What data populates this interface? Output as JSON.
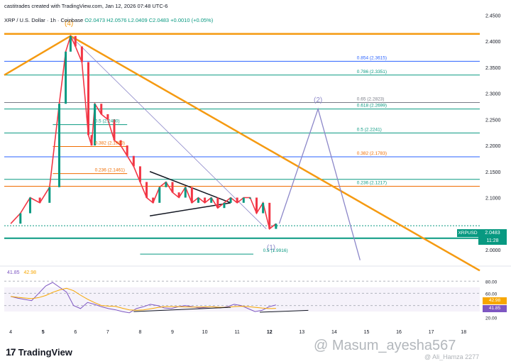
{
  "header": {
    "created": "castitrades created with TradingView.com, Jan 12, 2026 07:48 UTC-6",
    "symbol": "XRP / U.S. Dollar · 1h · Coinbase",
    "ohlc": "O2.0473 H2.0576 L2.0409 C2.0483 +0.0010 (+0.05%)"
  },
  "price_axis": {
    "ticks": [
      "2.4500",
      "2.4000",
      "2.3500",
      "2.3000",
      "2.2500",
      "2.2000",
      "2.1500",
      "2.1000",
      "2.0000"
    ]
  },
  "time_axis": {
    "ticks": [
      "4",
      "5",
      "6",
      "7",
      "8",
      "9",
      "10",
      "11",
      "12",
      "13",
      "14",
      "15",
      "16",
      "17",
      "18"
    ]
  },
  "current_price": {
    "symbol": "XRPUSD",
    "price": "2.0483",
    "countdown": "11:28"
  },
  "wave_labels": [
    "(4)",
    "(2)",
    "(1)"
  ],
  "fib_left": [
    "0.5 (2.2400)",
    "0.382 (2.1980)",
    "0.236 (2.1461)"
  ],
  "fib_right": [
    "0.854 (2.3615)",
    "0.786 (2.3351)",
    "0.65 (2.2823)",
    "0.618 (2.2699)",
    "0.5 (2.2241)",
    "0.382 (2.1783)",
    "0.236 (2.1217)",
    "0.5 (1.9916)"
  ],
  "rsi": {
    "value": "41.85",
    "ma": "42.98",
    "ticks": [
      "80.00",
      "60.00",
      "20.00"
    ]
  },
  "branding": {
    "logo": "TradingView",
    "watermark": "@ Masum_ayesha567",
    "watermark2": "@ Ali_Hamza 2277"
  },
  "colors": {
    "up": "#089981",
    "down": "#f23645",
    "trend": "#f59a11",
    "projection": "#8c87c9",
    "rsi": "#7e57c2"
  },
  "chart_data": {
    "type": "line",
    "xlabel": "",
    "ylabel": "",
    "x_days": [
      4,
      4.3,
      4.6,
      4.9,
      5.2,
      5.5,
      5.7,
      5.85,
      6.0,
      6.2,
      6.4,
      6.5,
      6.6,
      6.8,
      7.0,
      7.2,
      7.4,
      7.6,
      7.8,
      8.0,
      8.2,
      8.4,
      8.6,
      8.8,
      9.0,
      9.2,
      9.4,
      9.6,
      9.8,
      10.0,
      10.2,
      10.4,
      10.6,
      10.8,
      11.0,
      11.2,
      11.4,
      11.6,
      11.8,
      12.0,
      12.2
    ],
    "price": [
      2.05,
      2.07,
      2.1,
      2.09,
      2.12,
      2.28,
      2.38,
      2.41,
      2.39,
      2.36,
      2.22,
      2.2,
      2.28,
      2.26,
      2.25,
      2.21,
      2.2,
      2.18,
      2.16,
      2.13,
      2.1,
      2.09,
      2.12,
      2.13,
      2.11,
      2.1,
      2.12,
      2.09,
      2.1,
      2.09,
      2.1,
      2.08,
      2.09,
      2.1,
      2.09,
      2.1,
      2.1,
      2.07,
      2.09,
      2.04,
      2.05
    ],
    "ylim": [
      1.97,
      2.46
    ],
    "projection": [
      {
        "x": 12.3,
        "y": 2.05
      },
      {
        "x": 13.5,
        "y": 2.27
      },
      {
        "x": 14.8,
        "y": 1.98
      }
    ],
    "rsi_series": [
      55,
      52,
      50,
      48,
      60,
      72,
      78,
      70,
      62,
      40,
      35,
      45,
      42,
      38,
      35,
      33,
      30,
      28,
      35,
      38,
      42,
      40,
      36,
      35,
      38,
      40,
      38,
      36,
      37,
      38,
      36,
      38,
      42,
      40,
      35,
      30,
      32,
      38,
      41
    ],
    "rsi_ylim": [
      15,
      85
    ]
  }
}
